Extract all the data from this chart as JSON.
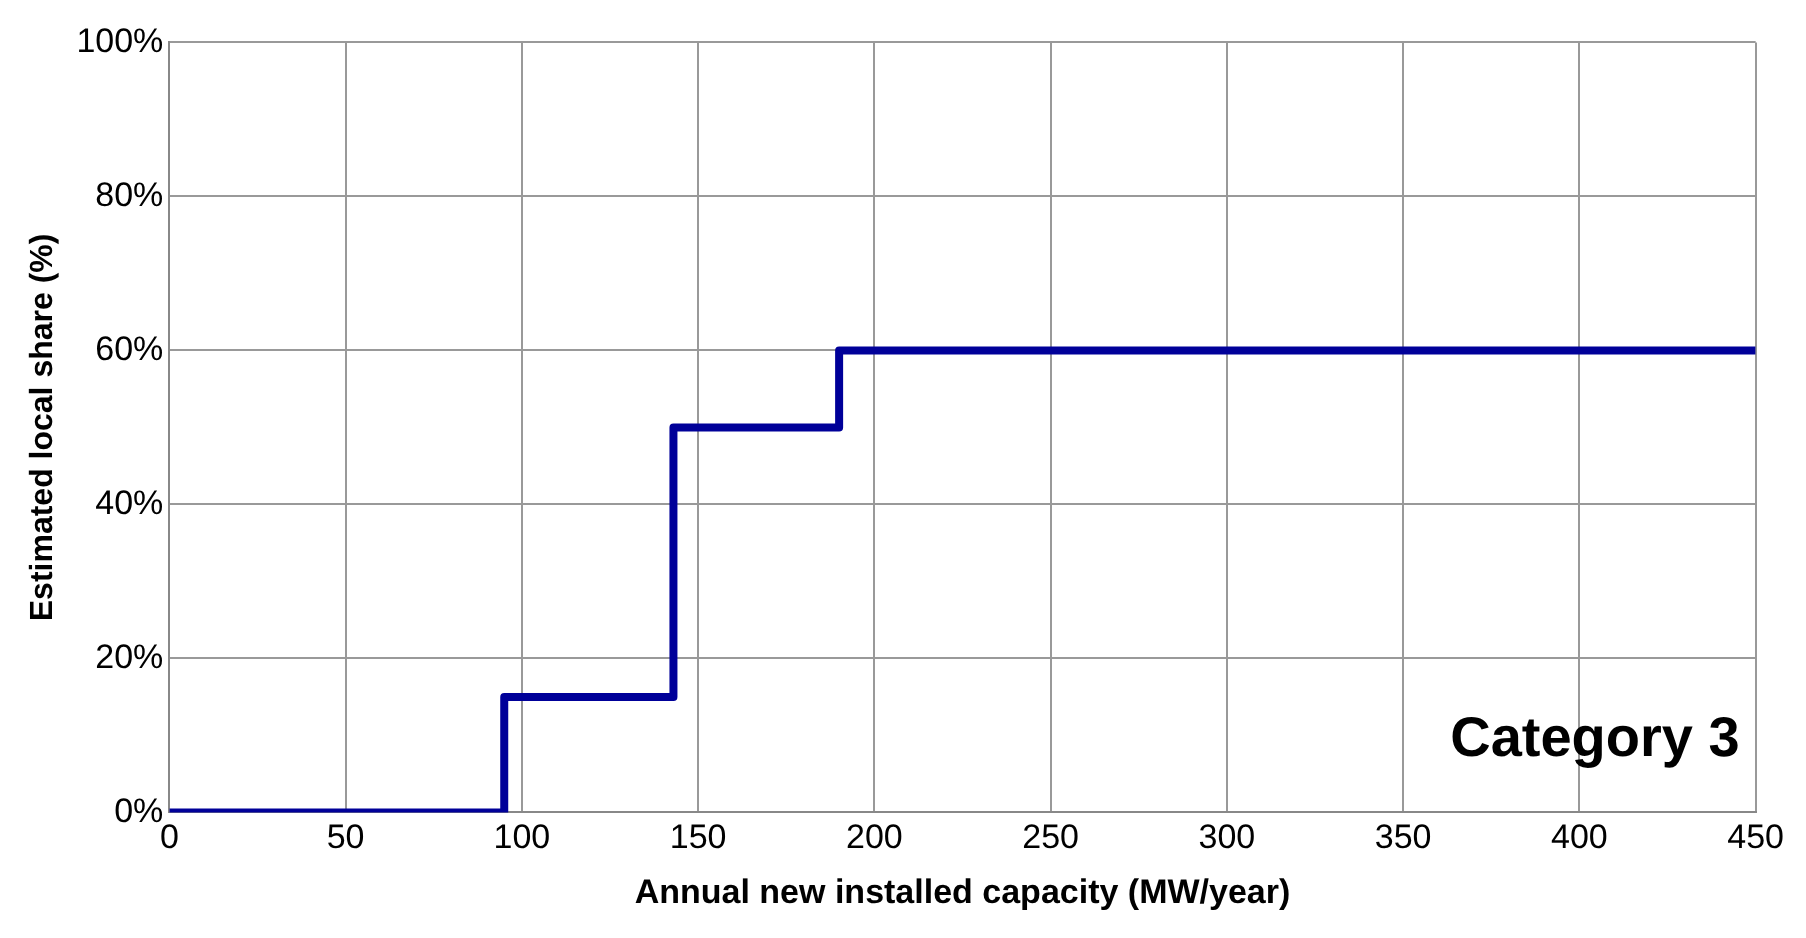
{
  "chart_data": {
    "type": "step",
    "xlabel": "Annual new installed capacity (MW/year)",
    "ylabel": "Estimated local share (%)",
    "x": [
      0,
      95,
      143,
      190,
      450
    ],
    "series": [
      {
        "color": "#000099",
        "values": [
          0,
          15,
          50,
          60,
          60
        ]
      }
    ],
    "xlim": [
      0,
      450
    ],
    "xticks": [
      0,
      50,
      100,
      150,
      200,
      250,
      300,
      350,
      400,
      450
    ],
    "ylim": [
      0,
      100
    ],
    "yticks": [
      {
        "value": 0,
        "label": "0%"
      },
      {
        "value": 20,
        "label": "20%"
      },
      {
        "value": 40,
        "label": "40%"
      },
      {
        "value": 60,
        "label": "60%"
      },
      {
        "value": 80,
        "label": "80%"
      },
      {
        "value": 100,
        "label": "100%"
      }
    ],
    "grid": true,
    "legend": false,
    "marker": "none",
    "annotations": [
      "Category 3"
    ]
  }
}
